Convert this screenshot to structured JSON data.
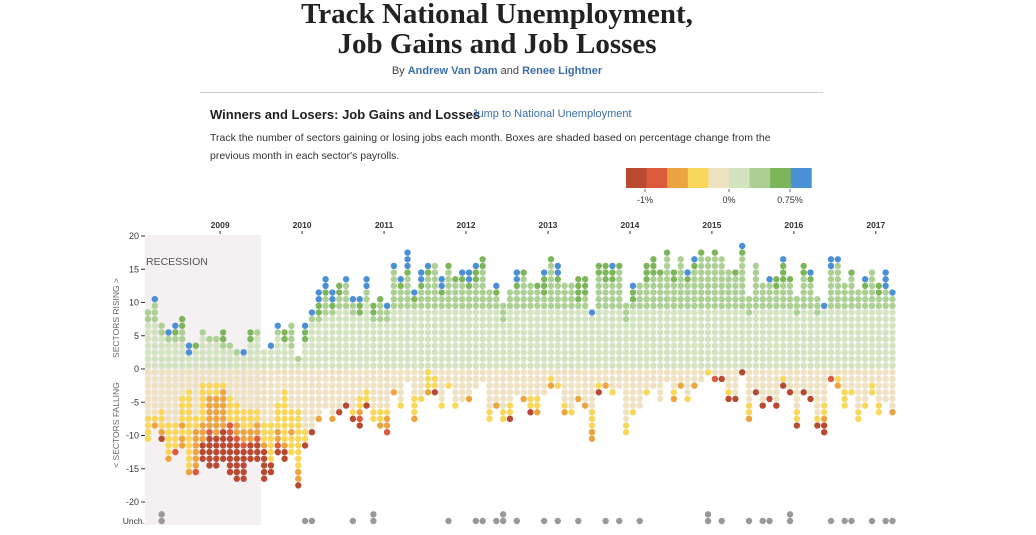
{
  "header": {
    "title_line1": "Track National Unemployment,",
    "title_line2": "Job Gains and Job Losses",
    "by": "By",
    "author1": "Andrew Van Dam",
    "and": "and",
    "author2": "Renee Lightner"
  },
  "section": {
    "title": "Winners and Losers: Job Gains and Losses",
    "jump_link": "Jump to National Unemployment",
    "description": "Track the number of sectors gaining or losing jobs each month. Boxes are shaded based on percentage change from the previous month in each sector's payrolls."
  },
  "legend": {
    "colors": [
      "#b84a32",
      "#dd5a3c",
      "#eca441",
      "#f9d75b",
      "#efe2c3",
      "#d3e3c0",
      "#acd094",
      "#7db65a",
      "#4b90d6"
    ],
    "ticks": [
      "-1%",
      "0%",
      "0.75%"
    ]
  },
  "chart_data": {
    "type": "dot-matrix",
    "x_tick_labels": [
      "2009",
      "2010",
      "2011",
      "2012",
      "2013",
      "2014",
      "2015",
      "2016",
      "2017"
    ],
    "y_tick_labels": [
      "20",
      "15",
      "10",
      "5",
      "0",
      "-5",
      "-10",
      "-15",
      "-20"
    ],
    "unchanged_label": "Unch.",
    "ylabel_up": "SECTORS RISING >",
    "ylabel_down": "< SECTORS FALLING",
    "annotation": "RECESSION",
    "unchanged_color": "#999999",
    "recession_color": "#f5f0f2",
    "color_key": "digits index legend.colors; up listed bottom→top, down listed top→bottom",
    "columns": [
      {
        "up": "555555566",
        "down": "44444443333",
        "unch": 0
      },
      {
        "up": "55555556668",
        "down": "444444432",
        "unch": 0
      },
      {
        "up": "5555566",
        "down": "44444433320",
        "unch": 2
      },
      {
        "up": "555568",
        "down": "44444444333332",
        "unch": 0
      },
      {
        "up": "5555678",
        "down": "4444444433331",
        "unch": 0
      },
      {
        "up": "55556677",
        "down": "444433332322",
        "unch": 0
      },
      {
        "up": "5588",
        "down": "4443333333333332",
        "unch": 0
      },
      {
        "up": "5557",
        "down": "4444444332222221",
        "unch": 0
      },
      {
        "up": "555556",
        "down": "44333333222000",
        "unch": 0
      },
      {
        "up": "55556",
        "down": "443322222100000",
        "unch": 0
      },
      {
        "up": "55556",
        "down": "443322222200000",
        "unch": 0
      },
      {
        "up": "555677",
        "down": "44322222200000",
        "unch": 0
      },
      {
        "up": "5556",
        "down": "4444333311000000",
        "unch": 0
      },
      {
        "up": "556",
        "down": "44444333221000000",
        "unch": 0
      },
      {
        "up": "558",
        "down": "44444433322100000",
        "unch": 0
      },
      {
        "up": "555577",
        "down": "44444433322000",
        "unch": 0
      },
      {
        "up": "555556",
        "down": "44444433221000",
        "unch": 0
      },
      {
        "up": "555",
        "down": "44444444333200000",
        "unch": 0
      },
      {
        "up": "5558",
        "down": "4444444433333300",
        "unch": 0
      },
      {
        "up": "5555568",
        "down": "4444433332210",
        "unch": 0
      },
      {
        "up": "555577",
        "down": "44433333333200",
        "unch": 0
      },
      {
        "up": "5556666",
        "down": "4444443332333",
        "unch": 0
      },
      {
        "up": "56",
        "down": "444444333333333220",
        "unch": 0
      },
      {
        "up": "5555778",
        "down": "444444444330",
        "unch": 1
      },
      {
        "up": "555555568",
        "down": "4444444440",
        "unch": 1
      },
      {
        "up": "555555567788",
        "down": "44444442",
        "unch": 0
      },
      {
        "up": "55555555666788",
        "down": "444444",
        "unch": 0
      },
      {
        "up": "555555556788",
        "down": "44444442",
        "unch": 0
      },
      {
        "up": "5555555556677",
        "down": "4444440",
        "unch": 0
      },
      {
        "up": "55555555566668",
        "down": "444440",
        "unch": 0
      },
      {
        "up": "55555555668",
        "down": "44444430",
        "unch": 1
      },
      {
        "up": "55555555778",
        "down": "444433210",
        "unch": 0
      },
      {
        "up": "55555555556688",
        "down": "444330",
        "unch": 0
      },
      {
        "up": "5555555677",
        "down": "44444433",
        "unch": 2
      },
      {
        "up": "55555556667",
        "down": "444444332",
        "unch": 0
      },
      {
        "up": "5555555668",
        "down": "4444443221",
        "unch": 0
      },
      {
        "up": "5555555556666668",
        "down": "4442",
        "unch": 0
      },
      {
        "up": "55555555566678",
        "down": "444443",
        "unch": 0
      },
      {
        "up": "555555555666667888",
        "down": "44",
        "unch": 0
      },
      {
        "up": "555555555678",
        "down": "44443332",
        "unch": 0
      },
      {
        "up": "555555555666788",
        "down": "44443",
        "unch": 0
      },
      {
        "up": "5555555556666678",
        "down": "3332",
        "unch": 0
      },
      {
        "up": "5555555556666666",
        "down": "4330",
        "unch": 0
      },
      {
        "up": "55555555566788",
        "down": "444443",
        "unch": 0
      },
      {
        "up": "5555555556666667",
        "down": "443",
        "unch": 1
      },
      {
        "up": "55555555566667",
        "down": "444443",
        "unch": 0
      },
      {
        "up": "555555555666678",
        "down": "44444",
        "unch": 0
      },
      {
        "up": "555555555666788",
        "down": "44442",
        "unch": 0
      },
      {
        "up": "5555555556666778",
        "down": "444",
        "unch": 1
      },
      {
        "up": "55555555566666677",
        "down": "44",
        "unch": 1
      },
      {
        "up": "555555555666",
        "down": "44444433",
        "unch": 0
      },
      {
        "up": "5555555556678",
        "down": "444442",
        "unch": 1
      },
      {
        "up": "5555555666",
        "down": "44444433",
        "unch": 2
      },
      {
        "up": "555555555666",
        "down": "44444330",
        "unch": 0
      },
      {
        "up": "555555555666788",
        "down": "4444",
        "unch": 1
      },
      {
        "up": "555555555666667",
        "down": "44442",
        "unch": 0
      },
      {
        "up": "5555555556666",
        "down": "4444330",
        "unch": 0
      },
      {
        "up": "5555555556667",
        "down": "4444332",
        "unch": 0
      },
      {
        "up": "555555555667778",
        "down": "4444",
        "unch": 1
      },
      {
        "up": "55555555566666667",
        "down": "432",
        "unch": 0
      },
      {
        "up": "5555555556666788",
        "down": "443",
        "unch": 1
      },
      {
        "up": "5555555556666",
        "down": "4444432",
        "unch": 0
      },
      {
        "up": "5555555556666",
        "down": "4444443",
        "unch": 0
      },
      {
        "up": "55555555567777",
        "down": "44442",
        "unch": 1
      },
      {
        "up": "55555555566777",
        "down": "444442",
        "unch": 0
      },
      {
        "up": "555555558",
        "down": "44444433322",
        "unch": 0
      },
      {
        "up": "5555555556666677",
        "down": "4430",
        "unch": 0
      },
      {
        "up": "5555555556666777",
        "down": "442",
        "unch": 1
      },
      {
        "up": "5555555556666778",
        "down": "4443",
        "unch": 0
      },
      {
        "up": "5555555556666667",
        "down": "444",
        "unch": 1
      },
      {
        "up": "5555555666",
        "down": "4444444433",
        "unch": 0
      },
      {
        "up": "5555555556778",
        "down": "4444443",
        "unch": 0
      },
      {
        "up": "5555555556666",
        "down": "444444",
        "unch": 1
      },
      {
        "up": "5555555556666777",
        "down": "4443",
        "unch": 0
      },
      {
        "up": "55555555566666777",
        "down": "444",
        "unch": 0
      },
      {
        "up": "555555555666667",
        "down": "44444",
        "unch": 0
      },
      {
        "up": "555555555666666667",
        "down": "44",
        "unch": 0
      },
      {
        "up": "555555555666677",
        "down": "44432",
        "unch": 0
      },
      {
        "up": "55555555566666666",
        "down": "442",
        "unch": 0
      },
      {
        "up": "555555555666678",
        "down": "44443",
        "unch": 0
      },
      {
        "up": "55555555566666678",
        "down": "442",
        "unch": 0
      },
      {
        "up": "555555555666666667",
        "down": "44",
        "unch": 0
      },
      {
        "up": "55555555566666666",
        "down": "3",
        "unch": 2
      },
      {
        "up": "555555555666666667",
        "down": "41",
        "unch": 0
      },
      {
        "up": "55555555566666666",
        "down": "40",
        "unch": 1
      },
      {
        "up": "555555555666666",
        "down": "44430",
        "unch": 0
      },
      {
        "up": "555555555666667",
        "down": "44440",
        "unch": 0
      },
      {
        "up": "5555555556666666678",
        "down": "0",
        "unch": 0
      },
      {
        "up": "55555555666",
        "down": "44444332",
        "unch": 1
      },
      {
        "up": "5555555556666666",
        "down": "4440",
        "unch": 0
      },
      {
        "up": "5555555556666",
        "down": "444440",
        "unch": 1
      },
      {
        "up": "55555555566668",
        "down": "44440",
        "unch": 1
      },
      {
        "up": "55555555566677",
        "down": "444440",
        "unch": 0
      },
      {
        "up": "55555555566667778",
        "down": "430",
        "unch": 0
      },
      {
        "up": "55555555566667",
        "down": "4440",
        "unch": 2
      },
      {
        "up": "55555555666",
        "down": "444444330",
        "unch": 0
      },
      {
        "up": "5555555556666677",
        "down": "4440",
        "unch": 0
      },
      {
        "up": "555555555666678",
        "down": "44440",
        "unch": 0
      },
      {
        "up": "55555555666",
        "down": "444444430",
        "unch": 0
      },
      {
        "up": "5555555558",
        "down": "4444433200",
        "unch": 0
      },
      {
        "up": "55555555566666688",
        "down": "41",
        "unch": 1
      },
      {
        "up": "55555555566666668",
        "down": "432",
        "unch": 0
      },
      {
        "up": "5555555556666",
        "down": "444333",
        "unch": 1
      },
      {
        "up": "555555555666667",
        "down": "4443",
        "unch": 1
      },
      {
        "up": "555555555666",
        "down": "44444433",
        "unch": 0
      },
      {
        "up": "55555555566678",
        "down": "444443",
        "unch": 0
      },
      {
        "up": "555555555666666",
        "down": "4433",
        "unch": 1
      },
      {
        "up": "5555555556677",
        "down": "4444433",
        "unch": 0
      },
      {
        "up": "555555555666888",
        "down": "44444",
        "unch": 1
      },
      {
        "up": "555555555668",
        "down": "4444442",
        "unch": 1
      }
    ]
  }
}
